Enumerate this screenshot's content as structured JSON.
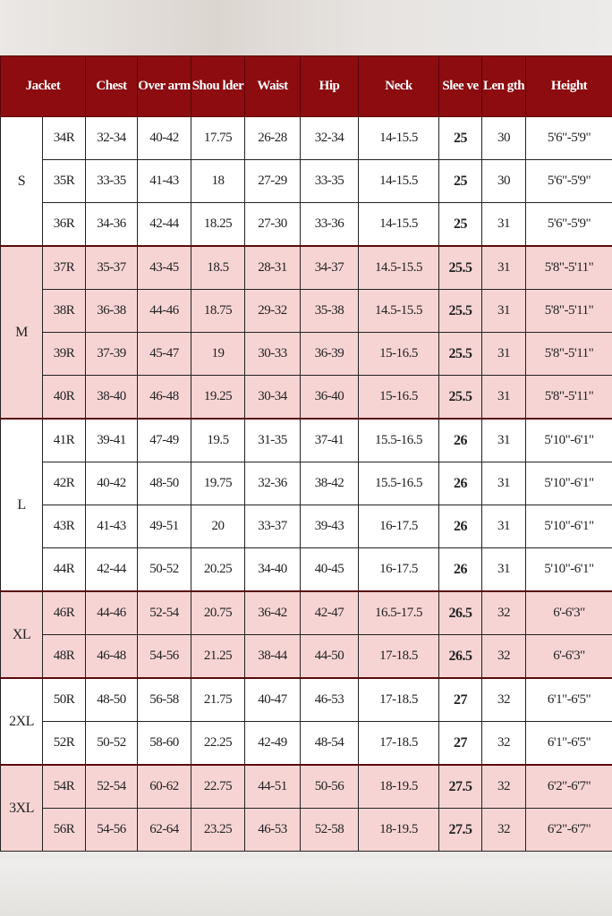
{
  "header": [
    "Jacket",
    "Chest",
    "Over arm",
    "Shou lder",
    "Waist",
    "Hip",
    "Neck",
    "Slee ve",
    "Len gth",
    "Height"
  ],
  "colors": {
    "header_bg": "#8c0c10",
    "pink_row": "#f7d4d4",
    "white_row": "#ffffff"
  },
  "groups": [
    {
      "label": "S",
      "shade": "white",
      "rows": [
        [
          "34R",
          "32-34",
          "40-42",
          "17.75",
          "26-28",
          "32-34",
          "14-15.5",
          "25",
          "30",
          "5'6\"-5'9\""
        ],
        [
          "35R",
          "33-35",
          "41-43",
          "18",
          "27-29",
          "33-35",
          "14-15.5",
          "25",
          "30",
          "5'6\"-5'9\""
        ],
        [
          "36R",
          "34-36",
          "42-44",
          "18.25",
          "27-30",
          "33-36",
          "14-15.5",
          "25",
          "31",
          "5'6\"-5'9\""
        ]
      ]
    },
    {
      "label": "M",
      "shade": "pink",
      "rows": [
        [
          "37R",
          "35-37",
          "43-45",
          "18.5",
          "28-31",
          "34-37",
          "14.5-15.5",
          "25.5",
          "31",
          "5'8\"-5'11\""
        ],
        [
          "38R",
          "36-38",
          "44-46",
          "18.75",
          "29-32",
          "35-38",
          "14.5-15.5",
          "25.5",
          "31",
          "5'8\"-5'11\""
        ],
        [
          "39R",
          "37-39",
          "45-47",
          "19",
          "30-33",
          "36-39",
          "15-16.5",
          "25.5",
          "31",
          "5'8\"-5'11\""
        ],
        [
          "40R",
          "38-40",
          "46-48",
          "19.25",
          "30-34",
          "36-40",
          "15-16.5",
          "25.5",
          "31",
          "5'8\"-5'11\""
        ]
      ]
    },
    {
      "label": "L",
      "shade": "white",
      "rows": [
        [
          "41R",
          "39-41",
          "47-49",
          "19.5",
          "31-35",
          "37-41",
          "15.5-16.5",
          "26",
          "31",
          "5'10\"-6'1\""
        ],
        [
          "42R",
          "40-42",
          "48-50",
          "19.75",
          "32-36",
          "38-42",
          "15.5-16.5",
          "26",
          "31",
          "5'10\"-6'1\""
        ],
        [
          "43R",
          "41-43",
          "49-51",
          "20",
          "33-37",
          "39-43",
          "16-17.5",
          "26",
          "31",
          "5'10\"-6'1\""
        ],
        [
          "44R",
          "42-44",
          "50-52",
          "20.25",
          "34-40",
          "40-45",
          "16-17.5",
          "26",
          "31",
          "5'10\"-6'1\""
        ]
      ]
    },
    {
      "label": "XL",
      "shade": "pink",
      "rows": [
        [
          "46R",
          "44-46",
          "52-54",
          "20.75",
          "36-42",
          "42-47",
          "16.5-17.5",
          "26.5",
          "32",
          "6'-6'3\""
        ],
        [
          "48R",
          "46-48",
          "54-56",
          "21.25",
          "38-44",
          "44-50",
          "17-18.5",
          "26.5",
          "32",
          "6'-6'3\""
        ]
      ]
    },
    {
      "label": "2XL",
      "shade": "white",
      "rows": [
        [
          "50R",
          "48-50",
          "56-58",
          "21.75",
          "40-47",
          "46-53",
          "17-18.5",
          "27",
          "32",
          "6'1\"-6'5\""
        ],
        [
          "52R",
          "50-52",
          "58-60",
          "22.25",
          "42-49",
          "48-54",
          "17-18.5",
          "27",
          "32",
          "6'1\"-6'5\""
        ]
      ]
    },
    {
      "label": "3XL",
      "shade": "pink",
      "rows": [
        [
          "54R",
          "52-54",
          "60-62",
          "22.75",
          "44-51",
          "50-56",
          "18-19.5",
          "27.5",
          "32",
          "6'2\"-6'7\""
        ],
        [
          "56R",
          "54-56",
          "62-64",
          "23.25",
          "46-53",
          "52-58",
          "18-19.5",
          "27.5",
          "32",
          "6'2\"-6'7\""
        ]
      ]
    }
  ]
}
